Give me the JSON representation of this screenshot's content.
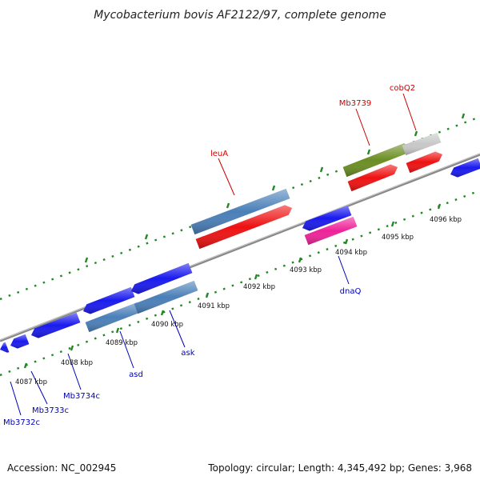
{
  "title": "Mycobacterium bovis AF2122/97, complete genome",
  "footer": {
    "accession": "Accession: NC_002945",
    "topology": "Topology: circular; Length: 4,345,492 bp; Genes: 3,968"
  },
  "colors": {
    "forward_label": "#cc0000",
    "reverse_label": "#0000bb",
    "ruler_ticks": "#228822",
    "backbone": "#888888"
  },
  "scale_labels": [
    "4087 kbp",
    "4088 kbp",
    "4089 kbp",
    "4090 kbp",
    "4091 kbp",
    "4092 kbp",
    "4093 kbp",
    "4094 kbp",
    "4095 kbp",
    "4096 kbp"
  ],
  "gene_labels": [
    {
      "text": "cobQ2",
      "strand": "forward"
    },
    {
      "text": "Mb3739",
      "strand": "forward"
    },
    {
      "text": "leuA",
      "strand": "forward"
    },
    {
      "text": "dnaQ",
      "strand": "reverse"
    },
    {
      "text": "ask",
      "strand": "reverse"
    },
    {
      "text": "asd",
      "strand": "reverse"
    },
    {
      "text": "Mb3734c",
      "strand": "reverse"
    },
    {
      "text": "Mb3733c",
      "strand": "reverse"
    },
    {
      "text": "Mb3732c",
      "strand": "reverse"
    }
  ],
  "features": [
    {
      "name": "feature-blue-1",
      "color": "#1a1aee"
    },
    {
      "name": "feature-blue-2",
      "color": "#1a1aee"
    },
    {
      "name": "feature-blue-3",
      "color": "#1a1aee"
    },
    {
      "name": "feature-blue-4",
      "color": "#1a1aee"
    },
    {
      "name": "feature-blue-5",
      "color": "#1a1aee"
    },
    {
      "name": "feature-steelblue-asd",
      "color": "#4a7fb8"
    },
    {
      "name": "feature-steelblue-ask",
      "color": "#4a7fb8"
    },
    {
      "name": "feature-steelblue-leuA",
      "color": "#4a7fb8"
    },
    {
      "name": "feature-red-leuA",
      "color": "#ee1111"
    },
    {
      "name": "feature-blue-dnaQ",
      "color": "#1a1aee"
    },
    {
      "name": "feature-magenta-dnaQ",
      "color": "#ee2299"
    },
    {
      "name": "feature-olive-Mb3739",
      "color": "#6b8e23"
    },
    {
      "name": "feature-grey-cobQ2",
      "color": "#c8c8c8"
    },
    {
      "name": "feature-red-Mb3739",
      "color": "#ee1111"
    },
    {
      "name": "feature-red-cobQ2",
      "color": "#ee1111"
    },
    {
      "name": "feature-blue-right",
      "color": "#1a1aee"
    }
  ]
}
